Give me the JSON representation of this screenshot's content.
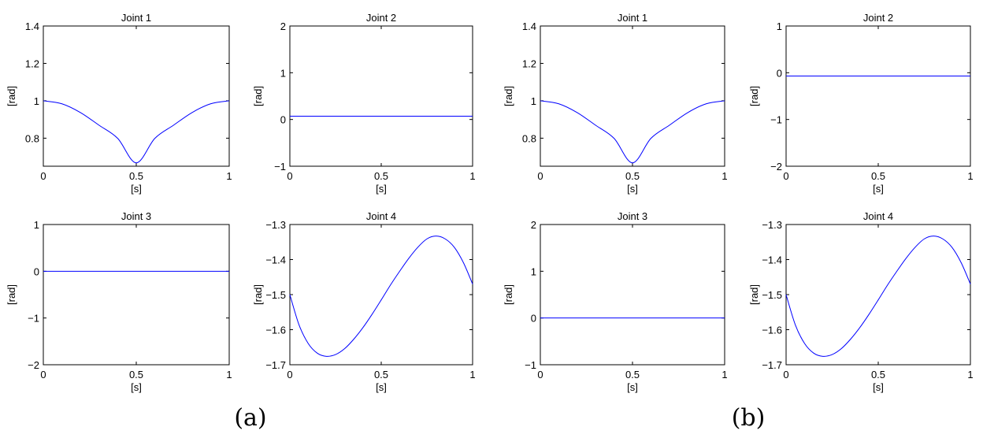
{
  "figure": {
    "captions": [
      "(a)",
      "(b)"
    ]
  },
  "chart_data": [
    {
      "type": "line",
      "group": "(a)",
      "title": "Joint 1",
      "xlabel": "[s]",
      "ylabel": "[rad]",
      "xlim": [
        0,
        1
      ],
      "ylim": [
        0.65,
        1.4
      ],
      "xticks": [
        0,
        0.5,
        1
      ],
      "xtick_labels": [
        "0",
        "0.5",
        "1"
      ],
      "yticks": [
        0.8,
        1,
        1.2,
        1.4
      ],
      "ytick_labels": [
        "0.8",
        "1",
        "1.2",
        "1.4"
      ],
      "series": [
        {
          "color": "#0000ff",
          "x": [
            0,
            0.1,
            0.2,
            0.3,
            0.4,
            0.5,
            0.6,
            0.7,
            0.8,
            0.9,
            1.0
          ],
          "y": [
            1.0,
            0.984,
            0.937,
            0.869,
            0.799,
            0.668,
            0.799,
            0.869,
            0.937,
            0.984,
            1.0
          ]
        }
      ]
    },
    {
      "type": "line",
      "group": "(a)",
      "title": "Joint 2",
      "xlabel": "[s]",
      "ylabel": "[rad]",
      "xlim": [
        0,
        1
      ],
      "ylim": [
        -1,
        2
      ],
      "xticks": [
        0,
        0.5,
        1
      ],
      "xtick_labels": [
        "0",
        "0.5",
        "1"
      ],
      "yticks": [
        -1,
        0,
        1,
        2
      ],
      "ytick_labels": [
        "−1",
        "0",
        "1",
        "2"
      ],
      "series": [
        {
          "color": "#0000ff",
          "x": [
            0,
            1
          ],
          "y": [
            0.07,
            0.07
          ]
        }
      ]
    },
    {
      "type": "line",
      "group": "(a)",
      "title": "Joint 3",
      "xlabel": "[s]",
      "ylabel": "[rad]",
      "xlim": [
        0,
        1
      ],
      "ylim": [
        -2,
        1
      ],
      "xticks": [
        0,
        0.5,
        1
      ],
      "xtick_labels": [
        "0",
        "0.5",
        "1"
      ],
      "yticks": [
        -2,
        -1,
        0,
        1
      ],
      "ytick_labels": [
        "−2",
        "−1",
        "0",
        "1"
      ],
      "series": [
        {
          "color": "#0000ff",
          "x": [
            0,
            1
          ],
          "y": [
            0,
            0
          ]
        }
      ]
    },
    {
      "type": "line",
      "group": "(a)",
      "title": "Joint 4",
      "xlabel": "[s]",
      "ylabel": "[rad]",
      "xlim": [
        0,
        1
      ],
      "ylim": [
        -1.7,
        -1.3
      ],
      "xticks": [
        0,
        0.5,
        1
      ],
      "xtick_labels": [
        "0",
        "0.5",
        "1"
      ],
      "yticks": [
        -1.7,
        -1.6,
        -1.5,
        -1.4,
        -1.3
      ],
      "ytick_labels": [
        "−1.7",
        "−1.6",
        "−1.5",
        "−1.4",
        "−1.3"
      ],
      "series": [
        {
          "color": "#0000ff",
          "x": [
            0,
            0.05,
            0.1,
            0.15,
            0.2,
            0.25,
            0.3,
            0.35,
            0.4,
            0.45,
            0.5,
            0.55,
            0.6,
            0.65,
            0.7,
            0.75,
            0.8,
            0.85,
            0.9,
            0.95,
            1.0
          ],
          "y": [
            -1.5,
            -1.586,
            -1.639,
            -1.667,
            -1.676,
            -1.671,
            -1.654,
            -1.627,
            -1.594,
            -1.556,
            -1.515,
            -1.473,
            -1.434,
            -1.397,
            -1.365,
            -1.341,
            -1.333,
            -1.341,
            -1.365,
            -1.409,
            -1.47
          ]
        }
      ]
    },
    {
      "type": "line",
      "group": "(b)",
      "title": "Joint 1",
      "xlabel": "[s]",
      "ylabel": "[rad]",
      "xlim": [
        0,
        1
      ],
      "ylim": [
        0.65,
        1.4
      ],
      "xticks": [
        0,
        0.5,
        1
      ],
      "xtick_labels": [
        "0",
        "0.5",
        "1"
      ],
      "yticks": [
        0.8,
        1,
        1.2,
        1.4
      ],
      "ytick_labels": [
        "0.8",
        "1",
        "1.2",
        "1.4"
      ],
      "series": [
        {
          "color": "#0000ff",
          "x": [
            0,
            0.1,
            0.2,
            0.3,
            0.4,
            0.5,
            0.6,
            0.7,
            0.8,
            0.9,
            1.0
          ],
          "y": [
            1.0,
            0.984,
            0.937,
            0.869,
            0.799,
            0.668,
            0.799,
            0.869,
            0.937,
            0.984,
            1.0
          ]
        }
      ]
    },
    {
      "type": "line",
      "group": "(b)",
      "title": "Joint 2",
      "xlabel": "[s]",
      "ylabel": "[rad]",
      "xlim": [
        0,
        1
      ],
      "ylim": [
        -2,
        1
      ],
      "xticks": [
        0,
        0.5,
        1
      ],
      "xtick_labels": [
        "0",
        "0.5",
        "1"
      ],
      "yticks": [
        -2,
        -1,
        0,
        1
      ],
      "ytick_labels": [
        "−2",
        "−1",
        "0",
        "1"
      ],
      "series": [
        {
          "color": "#0000ff",
          "x": [
            0,
            1
          ],
          "y": [
            -0.07,
            -0.07
          ]
        }
      ]
    },
    {
      "type": "line",
      "group": "(b)",
      "title": "Joint 3",
      "xlabel": "[s]",
      "ylabel": "[rad]",
      "xlim": [
        0,
        1
      ],
      "ylim": [
        -1,
        2
      ],
      "xticks": [
        0,
        0.5,
        1
      ],
      "xtick_labels": [
        "0",
        "0.5",
        "1"
      ],
      "yticks": [
        -1,
        0,
        1,
        2
      ],
      "ytick_labels": [
        "−1",
        "0",
        "1",
        "2"
      ],
      "series": [
        {
          "color": "#0000ff",
          "x": [
            0,
            1
          ],
          "y": [
            0,
            0
          ]
        }
      ]
    },
    {
      "type": "line",
      "group": "(b)",
      "title": "Joint 4",
      "xlabel": "[s]",
      "ylabel": "[rad]",
      "xlim": [
        0,
        1
      ],
      "ylim": [
        -1.7,
        -1.3
      ],
      "xticks": [
        0,
        0.5,
        1
      ],
      "xtick_labels": [
        "0",
        "0.5",
        "1"
      ],
      "yticks": [
        -1.7,
        -1.6,
        -1.5,
        -1.4,
        -1.3
      ],
      "ytick_labels": [
        "−1.7",
        "−1.6",
        "−1.5",
        "−1.4",
        "−1.3"
      ],
      "series": [
        {
          "color": "#0000ff",
          "x": [
            0,
            0.05,
            0.1,
            0.15,
            0.2,
            0.25,
            0.3,
            0.35,
            0.4,
            0.45,
            0.5,
            0.55,
            0.6,
            0.65,
            0.7,
            0.75,
            0.8,
            0.85,
            0.9,
            0.95,
            1.0
          ],
          "y": [
            -1.5,
            -1.586,
            -1.639,
            -1.667,
            -1.676,
            -1.671,
            -1.654,
            -1.627,
            -1.594,
            -1.556,
            -1.515,
            -1.473,
            -1.434,
            -1.397,
            -1.365,
            -1.341,
            -1.333,
            -1.341,
            -1.365,
            -1.409,
            -1.47
          ]
        }
      ]
    }
  ]
}
